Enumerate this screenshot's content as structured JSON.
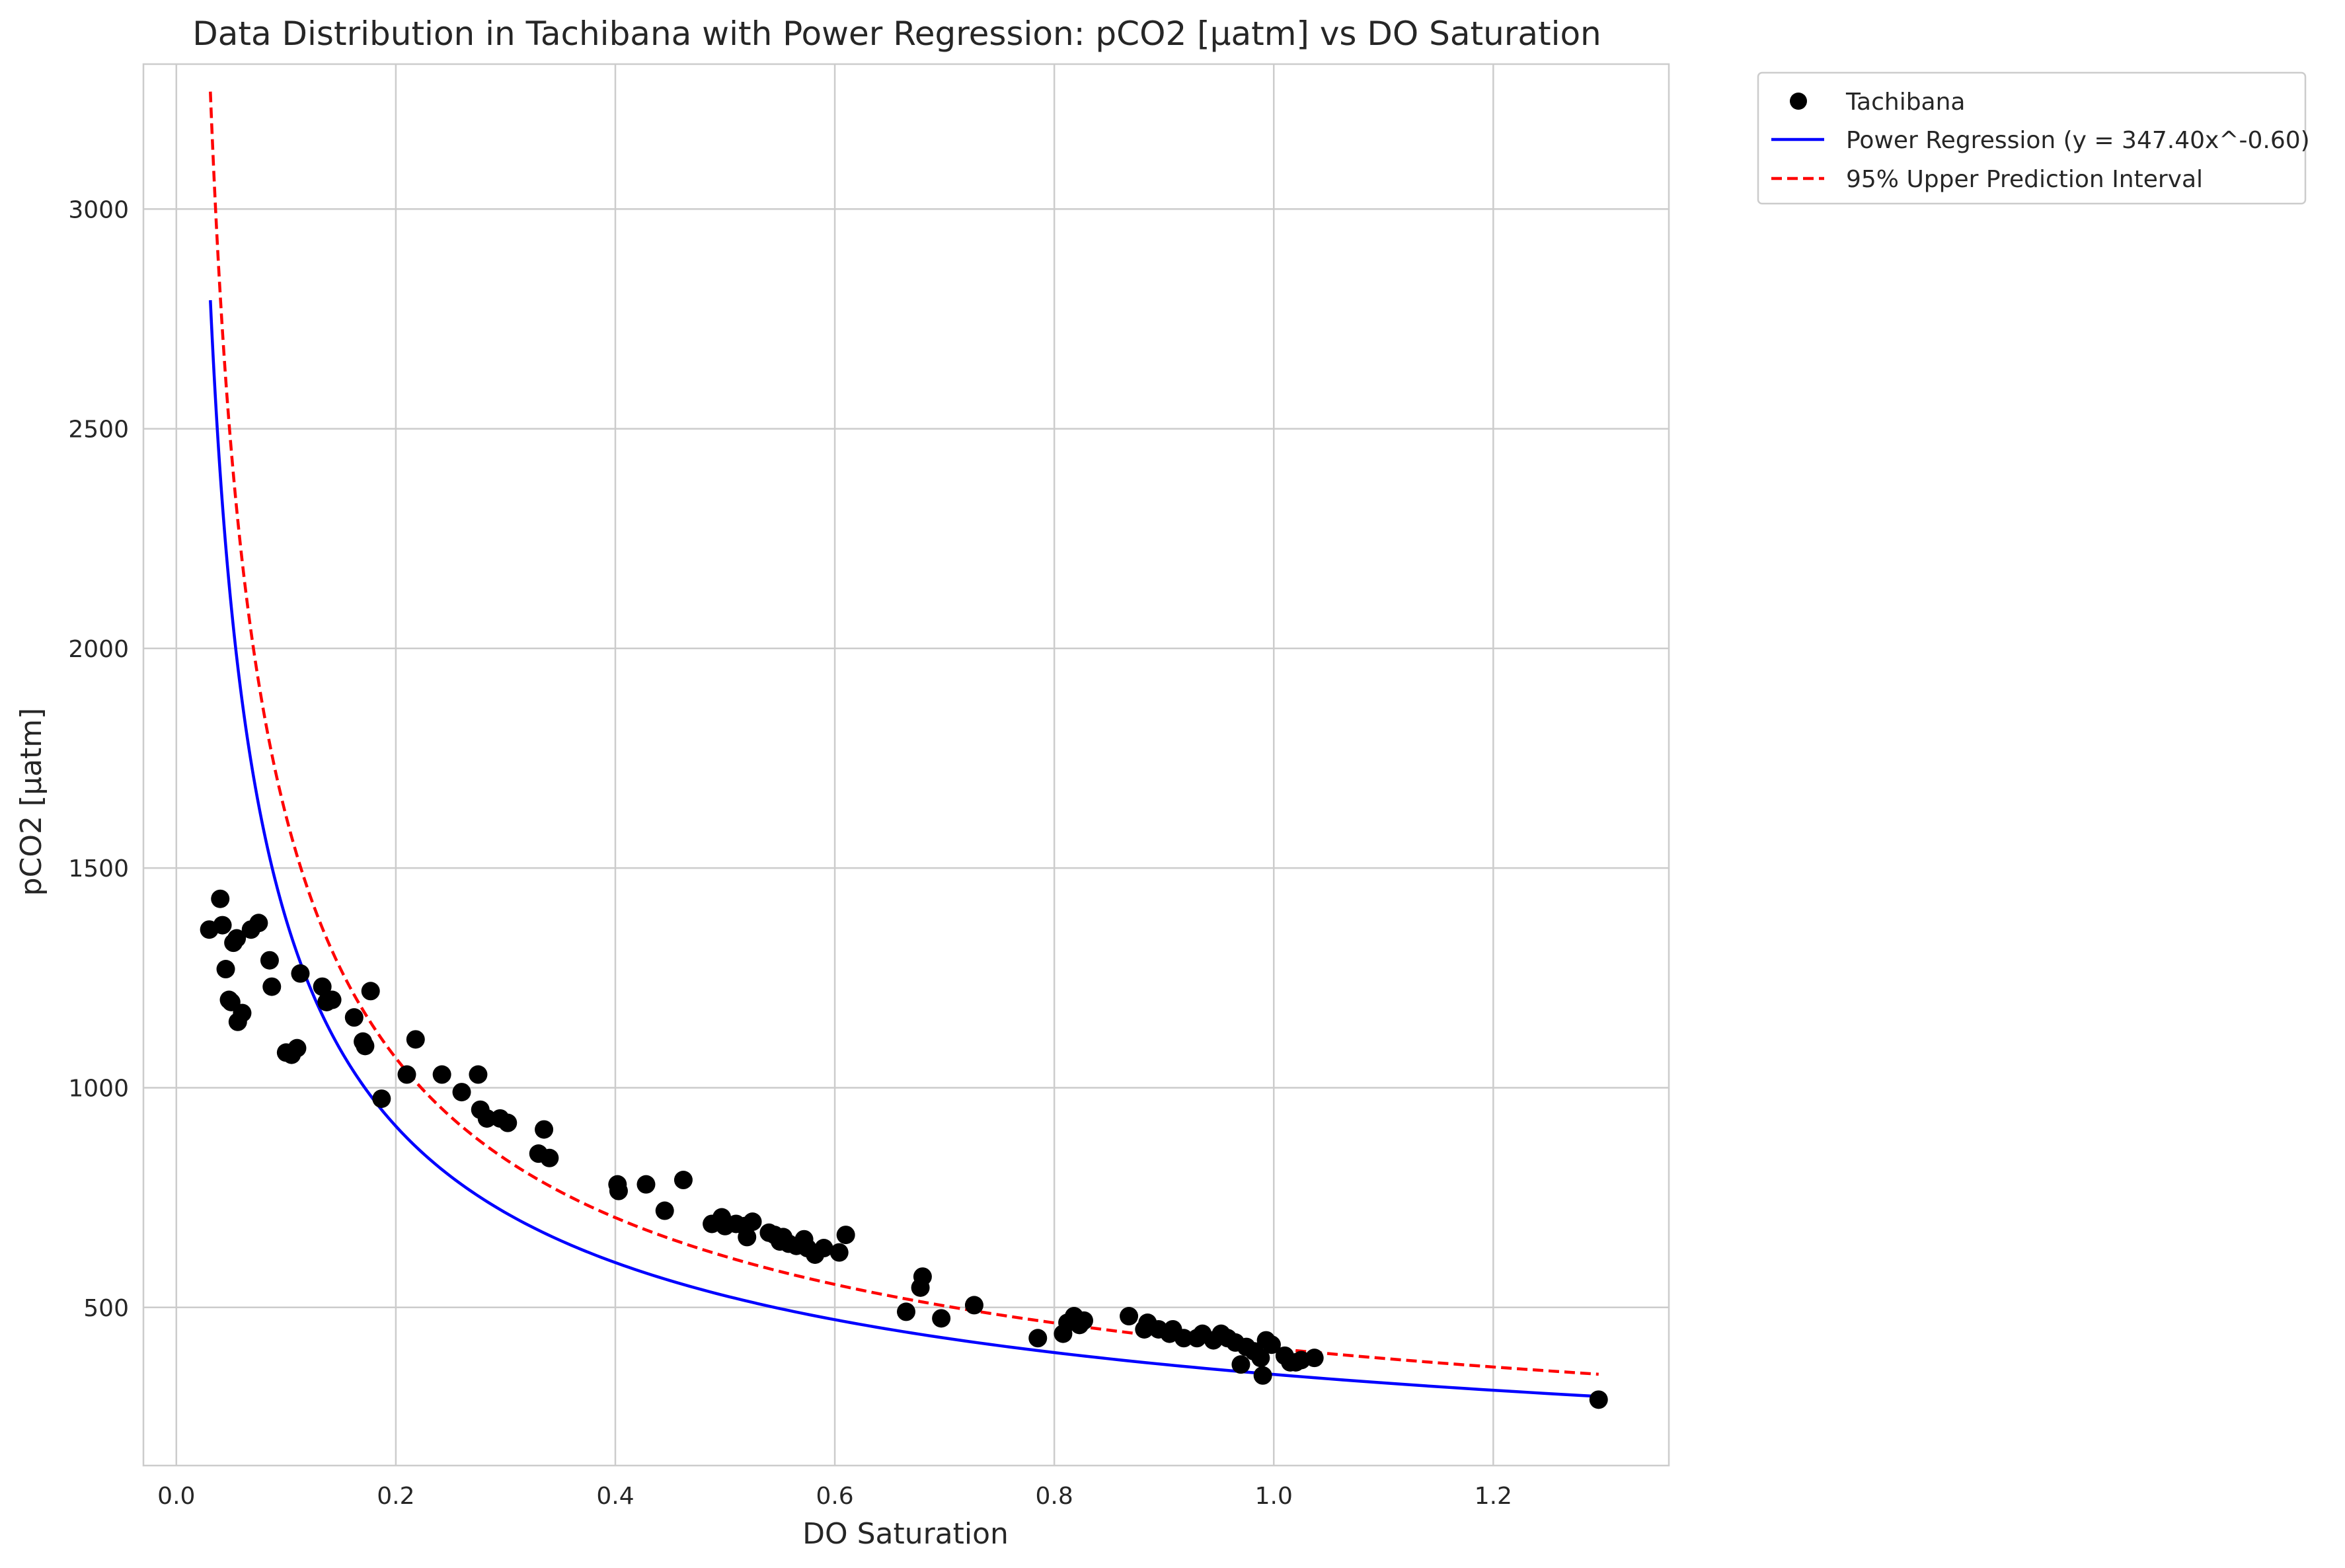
{
  "chart_data": {
    "type": "scatter",
    "title": "Data Distribution in Tachibana with Power Regression: pCO2 [μatm] vs DO Saturation",
    "xlabel": "DO Saturation",
    "ylabel": "pCO2 [μatm]",
    "xlim": [
      -0.03,
      1.36
    ],
    "ylim": [
      140,
      3330
    ],
    "xticks": [
      0.0,
      0.2,
      0.4,
      0.6,
      0.8,
      1.0,
      1.2
    ],
    "xtick_labels": [
      "0.0",
      "0.2",
      "0.4",
      "0.6",
      "0.8",
      "1.0",
      "1.2"
    ],
    "yticks": [
      500,
      1000,
      1500,
      2000,
      2500,
      3000
    ],
    "ytick_labels": [
      "500",
      "1000",
      "1500",
      "2000",
      "2500",
      "3000"
    ],
    "grid": true,
    "legend_placement": "outside-upper-right",
    "colors": {
      "points": "#000000",
      "regression": "#0000ff",
      "upper_interval": "#ff0000",
      "grid": "#cccccc",
      "frame": "#cccccc"
    },
    "series": [
      {
        "name": "Tachibana",
        "kind": "scatter",
        "points": [
          [
            0.03,
            1360
          ],
          [
            0.04,
            1430
          ],
          [
            0.042,
            1370
          ],
          [
            0.045,
            1270
          ],
          [
            0.048,
            1200
          ],
          [
            0.05,
            1195
          ],
          [
            0.052,
            1330
          ],
          [
            0.055,
            1340
          ],
          [
            0.056,
            1150
          ],
          [
            0.06,
            1170
          ],
          [
            0.068,
            1360
          ],
          [
            0.075,
            1375
          ],
          [
            0.085,
            1290
          ],
          [
            0.087,
            1230
          ],
          [
            0.1,
            1080
          ],
          [
            0.105,
            1075
          ],
          [
            0.11,
            1090
          ],
          [
            0.113,
            1260
          ],
          [
            0.133,
            1230
          ],
          [
            0.137,
            1195
          ],
          [
            0.142,
            1200
          ],
          [
            0.162,
            1160
          ],
          [
            0.17,
            1105
          ],
          [
            0.172,
            1095
          ],
          [
            0.177,
            1220
          ],
          [
            0.187,
            975
          ],
          [
            0.21,
            1030
          ],
          [
            0.218,
            1110
          ],
          [
            0.242,
            1030
          ],
          [
            0.26,
            990
          ],
          [
            0.275,
            1030
          ],
          [
            0.277,
            950
          ],
          [
            0.283,
            930
          ],
          [
            0.295,
            930
          ],
          [
            0.302,
            920
          ],
          [
            0.33,
            850
          ],
          [
            0.335,
            905
          ],
          [
            0.34,
            840
          ],
          [
            0.402,
            780
          ],
          [
            0.403,
            765
          ],
          [
            0.428,
            780
          ],
          [
            0.445,
            720
          ],
          [
            0.462,
            790
          ],
          [
            0.488,
            690
          ],
          [
            0.497,
            705
          ],
          [
            0.5,
            685
          ],
          [
            0.51,
            690
          ],
          [
            0.518,
            685
          ],
          [
            0.52,
            660
          ],
          [
            0.525,
            695
          ],
          [
            0.54,
            670
          ],
          [
            0.545,
            665
          ],
          [
            0.55,
            650
          ],
          [
            0.553,
            660
          ],
          [
            0.558,
            645
          ],
          [
            0.565,
            640
          ],
          [
            0.572,
            655
          ],
          [
            0.575,
            635
          ],
          [
            0.582,
            620
          ],
          [
            0.59,
            635
          ],
          [
            0.604,
            625
          ],
          [
            0.61,
            665
          ],
          [
            0.665,
            490
          ],
          [
            0.678,
            545
          ],
          [
            0.68,
            570
          ],
          [
            0.697,
            475
          ],
          [
            0.727,
            505
          ],
          [
            0.785,
            430
          ],
          [
            0.808,
            440
          ],
          [
            0.812,
            465
          ],
          [
            0.818,
            480
          ],
          [
            0.823,
            460
          ],
          [
            0.827,
            470
          ],
          [
            0.868,
            480
          ],
          [
            0.882,
            450
          ],
          [
            0.885,
            465
          ],
          [
            0.895,
            450
          ],
          [
            0.905,
            440
          ],
          [
            0.908,
            450
          ],
          [
            0.918,
            430
          ],
          [
            0.93,
            430
          ],
          [
            0.935,
            440
          ],
          [
            0.945,
            425
          ],
          [
            0.952,
            440
          ],
          [
            0.958,
            430
          ],
          [
            0.965,
            420
          ],
          [
            0.97,
            370
          ],
          [
            0.975,
            410
          ],
          [
            0.982,
            400
          ],
          [
            0.988,
            385
          ],
          [
            0.99,
            345
          ],
          [
            0.993,
            425
          ],
          [
            0.998,
            415
          ],
          [
            1.01,
            390
          ],
          [
            1.015,
            375
          ],
          [
            1.02,
            375
          ],
          [
            1.025,
            380
          ],
          [
            1.037,
            385
          ],
          [
            1.296,
            290
          ]
        ]
      },
      {
        "name": "Power Regression (y = 347.40x^-0.60)",
        "kind": "line",
        "style": "solid",
        "formula": {
          "a": 347.4,
          "b": -0.6
        },
        "x_range": [
          0.031,
          1.296
        ]
      },
      {
        "name": "95% Upper Prediction Interval",
        "kind": "line",
        "style": "dashed",
        "formula": {
          "a": 347.4,
          "b": -0.6,
          "upper_factor": 1.17
        },
        "x_range": [
          0.031,
          1.296
        ]
      }
    ]
  }
}
